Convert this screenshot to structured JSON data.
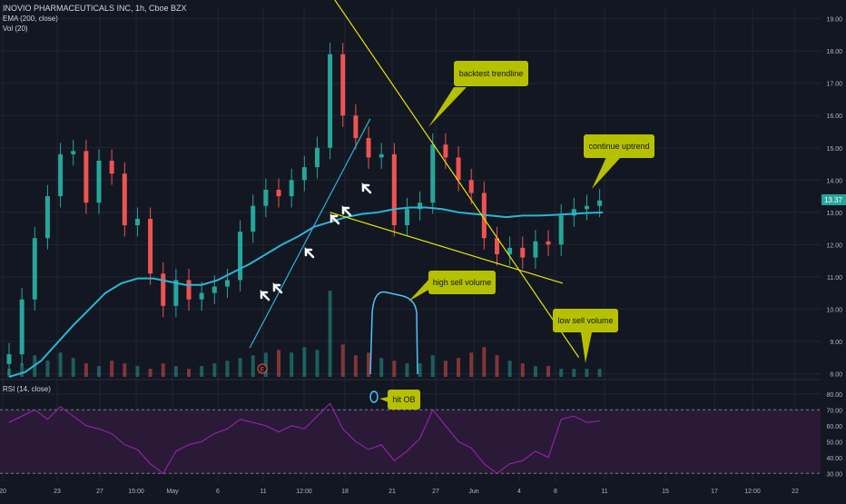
{
  "legend": {
    "symbol_title": "INOVIO PHARMACEUTICALS INC, 1h, Cboe BZX",
    "ema_label": "EMA (200, close)",
    "vol_label": "Vol (20)",
    "rsi_label": "RSI (14, close)"
  },
  "colors": {
    "background": "#131722",
    "grid": "#1f2533",
    "up": "#26a69a",
    "down": "#ef5350",
    "ema": "#29b6d6",
    "trendline": "#e6e600",
    "rsi": "#9c27b0",
    "rsi_band": "#2a1a38",
    "annotation_fill": "#b5c100",
    "annotation_text": "#131722",
    "price_badge": "#26a69a"
  },
  "price_badge": "13.37",
  "annotations": {
    "backtest": "backtest trendline",
    "continue": "continue uptrend",
    "high_sell": "high sell volume",
    "low_sell": "low sell volume",
    "hit_ob": "hit OB"
  },
  "chart_data": [
    {
      "type": "line",
      "panel": "price",
      "title": "INOVIO PHARMACEUTICALS INC, 1h, Cboe BZX",
      "x_ticks": [
        "20",
        "23",
        "27",
        "15:00",
        "May",
        "6",
        "11",
        "12:00",
        "18",
        "21",
        "27",
        "Jun",
        "4",
        "8",
        "11",
        "15",
        "17",
        "12:00",
        "22"
      ],
      "y_ticks": [
        8.0,
        9.0,
        10.0,
        11.0,
        12.0,
        13.0,
        14.0,
        15.0,
        16.0,
        17.0,
        18.0,
        19.0
      ],
      "ylim": [
        7.9,
        19.3
      ],
      "last_price": 13.37,
      "series": [
        {
          "name": "EMA (200, close)",
          "x": [
            0,
            10,
            20,
            30,
            40,
            50,
            60,
            70,
            80,
            90,
            100,
            110,
            120,
            130,
            140,
            150,
            160,
            170,
            180,
            190,
            200,
            210,
            220,
            230,
            240,
            250,
            260,
            270,
            280,
            290,
            300,
            310,
            320,
            330,
            340,
            350,
            360,
            370
          ],
          "values": [
            7.9,
            8.05,
            8.4,
            8.95,
            9.5,
            10.0,
            10.5,
            10.8,
            10.95,
            10.95,
            10.85,
            10.75,
            10.75,
            10.9,
            11.15,
            11.4,
            11.7,
            12.0,
            12.25,
            12.55,
            12.7,
            12.85,
            12.95,
            13.0,
            13.1,
            13.15,
            13.15,
            13.1,
            13.0,
            12.95,
            12.9,
            12.85,
            12.9,
            12.9,
            12.92,
            12.95,
            12.98,
            13.0
          ]
        },
        {
          "name": "Close",
          "x": [
            0,
            8,
            16,
            24,
            32,
            40,
            48,
            56,
            64,
            72,
            80,
            88,
            96,
            104,
            112,
            120,
            128,
            136,
            144,
            152,
            160,
            168,
            176,
            184,
            192,
            200,
            208,
            216,
            224,
            232,
            240,
            248,
            256,
            264,
            272,
            280,
            288,
            296,
            304,
            312,
            320,
            328,
            336,
            344,
            352,
            360,
            368
          ],
          "values": [
            8.6,
            10.3,
            12.2,
            13.5,
            14.8,
            14.9,
            13.3,
            14.6,
            14.2,
            12.6,
            12.8,
            11.1,
            10.1,
            10.9,
            10.3,
            10.5,
            10.7,
            10.9,
            12.4,
            13.2,
            13.7,
            13.5,
            14.0,
            14.4,
            15.0,
            17.9,
            16.0,
            15.3,
            14.7,
            14.8,
            12.6,
            13.1,
            13.3,
            15.1,
            14.7,
            14.0,
            13.6,
            12.2,
            11.7,
            11.9,
            11.6,
            12.1,
            12.0,
            12.9,
            13.1,
            13.2,
            13.37
          ]
        }
      ],
      "volume": [
        3,
        5,
        8,
        6,
        9,
        7,
        5,
        4,
        6,
        5,
        4,
        3,
        5,
        4,
        3,
        4,
        5,
        6,
        7,
        8,
        9,
        10,
        9,
        11,
        10,
        32,
        12,
        8,
        9,
        7,
        6,
        5,
        5,
        8,
        6,
        7,
        9,
        11,
        8,
        6,
        5,
        4,
        4,
        3,
        3,
        3,
        3
      ],
      "trendlines": [
        {
          "from": [
            150,
            8.8
          ],
          "to": [
            225,
            15.9
          ]
        },
        {
          "from": [
            200,
            19.8
          ],
          "to": [
            355,
            8.5
          ]
        },
        {
          "from": [
            200,
            13.0
          ],
          "to": [
            345,
            10.8
          ]
        }
      ]
    },
    {
      "type": "line",
      "panel": "rsi",
      "title": "RSI (14, close)",
      "y_ticks": [
        30.0,
        40.0,
        50.0,
        60.0,
        70.0,
        80.0
      ],
      "ylim": [
        25,
        85
      ],
      "band": [
        30,
        70
      ],
      "series": [
        {
          "name": "RSI",
          "x": [
            0,
            8,
            16,
            24,
            32,
            40,
            48,
            56,
            64,
            72,
            80,
            88,
            96,
            104,
            112,
            120,
            128,
            136,
            144,
            152,
            160,
            168,
            176,
            184,
            192,
            200,
            208,
            216,
            224,
            232,
            240,
            248,
            256,
            264,
            272,
            280,
            288,
            296,
            304,
            312,
            320,
            328,
            336,
            344,
            352,
            360,
            368
          ],
          "values": [
            62,
            66,
            70,
            64,
            72,
            66,
            60,
            58,
            55,
            48,
            45,
            36,
            30,
            44,
            48,
            50,
            55,
            58,
            64,
            62,
            60,
            56,
            60,
            58,
            66,
            74,
            58,
            50,
            45,
            48,
            38,
            44,
            52,
            70,
            60,
            50,
            46,
            36,
            30,
            36,
            38,
            44,
            40,
            64,
            66,
            62,
            63
          ]
        }
      ]
    }
  ]
}
